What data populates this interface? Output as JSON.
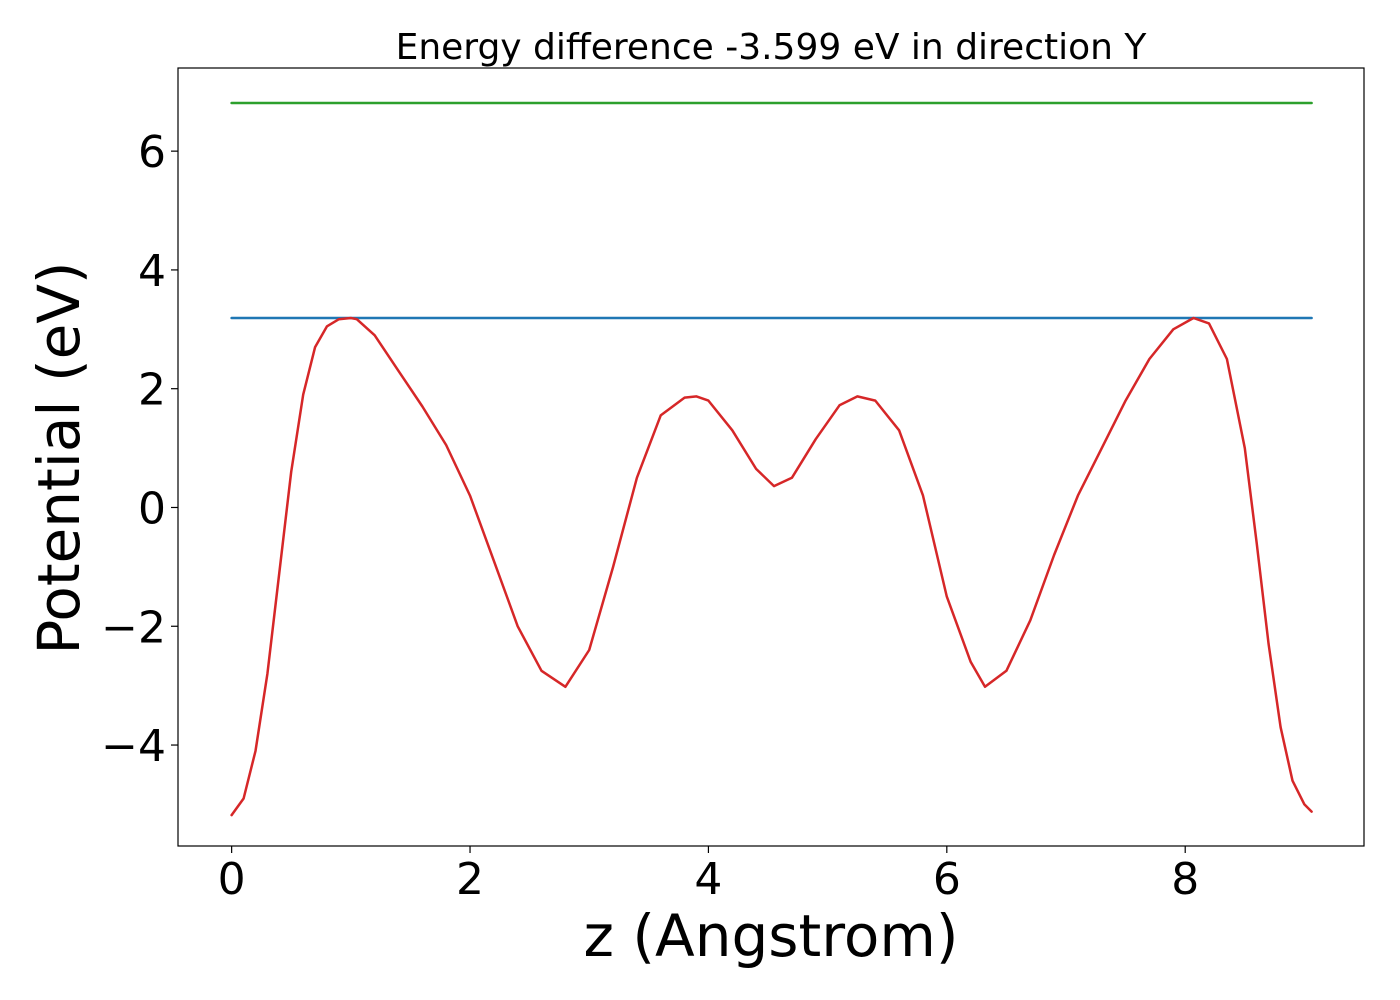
{
  "chart_data": {
    "type": "line",
    "title": "Energy difference -3.599 eV in direction Y",
    "xlabel": "z (Angstrom)",
    "ylabel": "Potential (eV)",
    "xlim": [
      -0.45,
      9.5
    ],
    "ylim": [
      -5.7,
      7.4
    ],
    "xticks": [
      0,
      2,
      4,
      6,
      8
    ],
    "xtick_labels": [
      "0",
      "2",
      "4",
      "6",
      "8"
    ],
    "yticks": [
      -4,
      -2,
      0,
      2,
      4,
      6
    ],
    "ytick_labels": [
      "−4",
      "−2",
      "0",
      "2",
      "4",
      "6"
    ],
    "grid": false,
    "series": [
      {
        "color": "#2ca02c",
        "x": [
          0,
          9.06
        ],
        "y": [
          6.81,
          6.81
        ]
      },
      {
        "color": "#1f77b4",
        "x": [
          0,
          9.06
        ],
        "y": [
          3.19,
          3.19
        ]
      },
      {
        "color": "#d62728",
        "x": [
          0,
          0.1,
          0.2,
          0.3,
          0.4,
          0.5,
          0.6,
          0.7,
          0.8,
          0.9,
          1.0,
          1.05,
          1.2,
          1.4,
          1.6,
          1.8,
          2.0,
          2.2,
          2.4,
          2.6,
          2.8,
          3.0,
          3.2,
          3.4,
          3.6,
          3.8,
          3.9,
          4.0,
          4.2,
          4.4,
          4.55,
          4.7,
          4.9,
          5.1,
          5.25,
          5.4,
          5.6,
          5.8,
          6.0,
          6.2,
          6.32,
          6.5,
          6.7,
          6.9,
          7.1,
          7.3,
          7.5,
          7.7,
          7.9,
          8.07,
          8.2,
          8.35,
          8.5,
          8.6,
          8.7,
          8.8,
          8.9,
          9.0,
          9.06
        ],
        "y": [
          -5.18,
          -4.9,
          -4.1,
          -2.8,
          -1.1,
          0.6,
          1.9,
          2.7,
          3.05,
          3.17,
          3.19,
          3.17,
          2.9,
          2.3,
          1.7,
          1.05,
          0.2,
          -0.9,
          -2.0,
          -2.75,
          -3.02,
          -2.4,
          -1.0,
          0.5,
          1.55,
          1.85,
          1.87,
          1.8,
          1.3,
          0.65,
          0.36,
          0.5,
          1.15,
          1.72,
          1.87,
          1.8,
          1.3,
          0.2,
          -1.5,
          -2.6,
          -3.02,
          -2.75,
          -1.9,
          -0.8,
          0.2,
          1.0,
          1.8,
          2.5,
          3.0,
          3.19,
          3.1,
          2.5,
          1.0,
          -0.6,
          -2.3,
          -3.7,
          -4.6,
          -5.0,
          -5.12
        ]
      }
    ]
  }
}
